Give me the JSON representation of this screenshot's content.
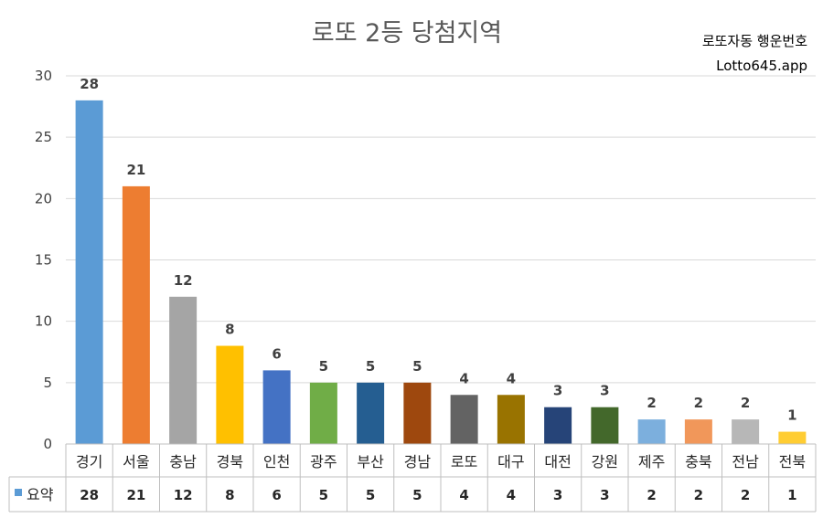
{
  "chart_data": {
    "type": "bar",
    "title": "로또 2등 당첨지역",
    "subtitle_lines": [
      "로또자동 행운번호",
      "Lotto645.app"
    ],
    "categories": [
      "경기",
      "서울",
      "충남",
      "경북",
      "인천",
      "광주",
      "부산",
      "경남",
      "로또",
      "대구",
      "대전",
      "강원",
      "제주",
      "충북",
      "전남",
      "전북"
    ],
    "series": [
      {
        "name": "요약",
        "values": [
          28,
          21,
          12,
          8,
          6,
          5,
          5,
          5,
          4,
          4,
          3,
          3,
          2,
          2,
          2,
          1
        ]
      }
    ],
    "colors": [
      "#5B9BD5",
      "#ED7D31",
      "#A5A5A5",
      "#FFC000",
      "#4472C4",
      "#70AD47",
      "#255E91",
      "#9E480E",
      "#636363",
      "#997300",
      "#264478",
      "#43682B",
      "#7CAFDD",
      "#F1975A",
      "#B7B7B7",
      "#FFCD33"
    ],
    "ylim": [
      0,
      30
    ],
    "yticks": [
      0,
      5,
      10,
      15,
      20,
      25,
      30
    ],
    "grid": true,
    "data_table": true,
    "legend_marker_color": "#5B9BD5"
  }
}
